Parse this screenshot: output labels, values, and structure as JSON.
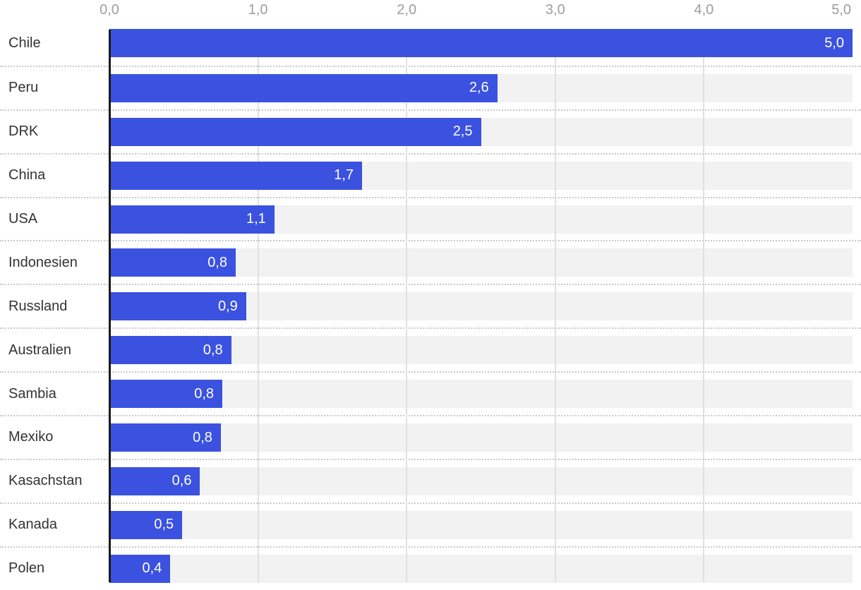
{
  "chart_data": {
    "type": "bar",
    "orientation": "horizontal",
    "categories": [
      "Chile",
      "Peru",
      "DRK",
      "China",
      "USA",
      "Indonesien",
      "Russland",
      "Australien",
      "Sambia",
      "Mexiko",
      "Kasachstan",
      "Kanada",
      "Polen"
    ],
    "values": [
      5.0,
      2.61,
      2.5,
      1.7,
      1.11,
      0.85,
      0.92,
      0.82,
      0.76,
      0.75,
      0.61,
      0.49,
      0.41
    ],
    "value_labels": [
      "5,0",
      "2,6",
      "2,5",
      "1,7",
      "1,1",
      "0,8",
      "0,9",
      "0,8",
      "0,8",
      "0,8",
      "0,6",
      "0,5",
      "0,4"
    ],
    "x_axis": {
      "position": "top",
      "ticks": [
        "0,0",
        "1,0",
        "2,0",
        "3,0",
        "4,0",
        "5,0"
      ],
      "tick_values": [
        0,
        1,
        2,
        3,
        4,
        5
      ],
      "min": 0,
      "max": 5
    },
    "grid": "vertical",
    "legend": "none",
    "colors": {
      "bar": "#3b52e0",
      "track": "#f2f2f2",
      "gridline": "#e0e0e0",
      "separator": "#c9c9c9",
      "axis_line": "#1a1a1a",
      "tick_text": "#9e9e9e",
      "category_text": "#333333",
      "value_text": "#ffffff",
      "background": "#ffffff"
    }
  }
}
